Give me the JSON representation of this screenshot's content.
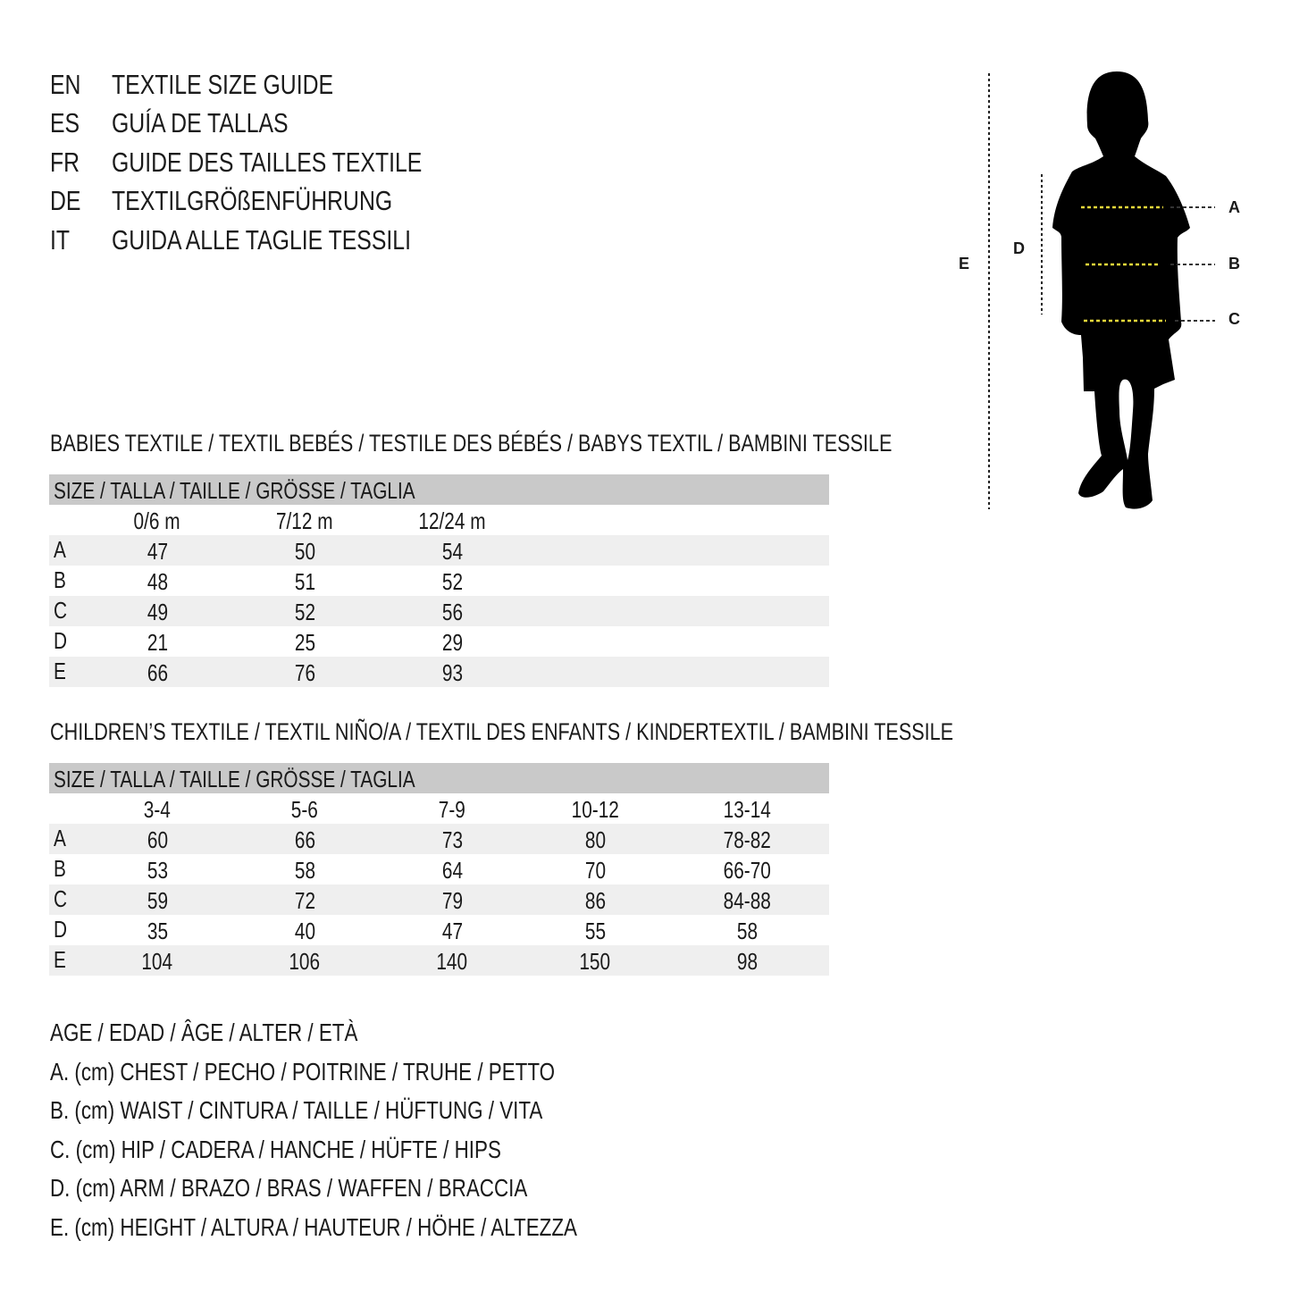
{
  "titles": [
    {
      "code": "EN",
      "text": "TEXTILE SIZE GUIDE"
    },
    {
      "code": "ES",
      "text": "GUÍA DE TALLAS"
    },
    {
      "code": "FR",
      "text": "GUIDE DES TAILLES TEXTILE"
    },
    {
      "code": "DE",
      "text": "TEXTILGRÖßENFÜHRUNG"
    },
    {
      "code": "IT",
      "text": "GUIDA ALLE TAGLIE TESSILI"
    }
  ],
  "figure": {
    "labels": {
      "A": "A",
      "B": "B",
      "C": "C",
      "D": "D",
      "E": "E"
    },
    "colors": {
      "silhouette": "#000000",
      "measure_line": "#e8d83a"
    }
  },
  "babies": {
    "heading": "BABIES TEXTILE / TEXTIL BEBÉS / TESTILE DES BÉBÉS / BABYS TEXTIL / BAMBINI TESSILE",
    "size_header": "SIZE / TALLA / TAILLE / GRÖSSE / TAGLIA",
    "columns": [
      "0/6 m",
      "7/12 m",
      "12/24 m"
    ],
    "rows": [
      {
        "label": "A",
        "values": [
          "47",
          "50",
          "54"
        ]
      },
      {
        "label": "B",
        "values": [
          "48",
          "51",
          "52"
        ]
      },
      {
        "label": "C",
        "values": [
          "49",
          "52",
          "56"
        ]
      },
      {
        "label": "D",
        "values": [
          "21",
          "25",
          "29"
        ]
      },
      {
        "label": "E",
        "values": [
          "66",
          "76",
          "93"
        ]
      }
    ]
  },
  "children": {
    "heading": "CHILDREN’S TEXTILE / TEXTIL NIÑO/A / TEXTIL DES ENFANTS / KINDERTEXTIL / BAMBINI TESSILE",
    "size_header": "SIZE / TALLA / TAILLE / GRÖSSE / TAGLIA",
    "columns": [
      "3-4",
      "5-6",
      "7-9",
      "10-12",
      "13-14"
    ],
    "rows": [
      {
        "label": "A",
        "values": [
          "60",
          "66",
          "73",
          "80",
          "78-82"
        ]
      },
      {
        "label": "B",
        "values": [
          "53",
          "58",
          "64",
          "70",
          "66-70"
        ]
      },
      {
        "label": "C",
        "values": [
          "59",
          "72",
          "79",
          "86",
          "84-88"
        ]
      },
      {
        "label": "D",
        "values": [
          "35",
          "40",
          "47",
          "55",
          "58"
        ]
      },
      {
        "label": "E",
        "values": [
          "104",
          "106",
          "140",
          "150",
          "98"
        ]
      }
    ]
  },
  "legend": [
    "AGE / EDAD / ÂGE / ALTER / ETÀ",
    "A. (cm) CHEST / PECHO / POITRINE / TRUHE / PETTO",
    "B. (cm) WAIST / CINTURA / TAILLE / HÜFTUNG / VITA",
    "C. (cm) HIP / CADERA / HANCHE / HÜFTE / HIPS",
    "D. (cm) ARM / BRAZO / BRAS / WAFFEN / BRACCIA",
    "E. (cm) HEIGHT / ALTURA / HAUTEUR / HÖHE / ALTEZZA"
  ]
}
